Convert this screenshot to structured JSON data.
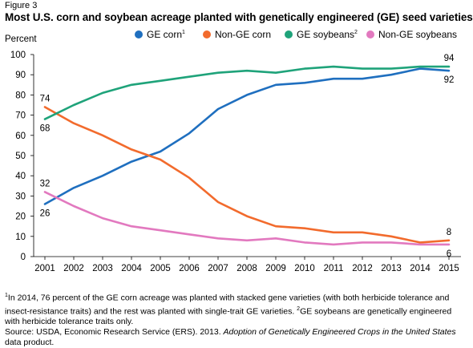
{
  "figure_label": "Figure 3",
  "title": "Most U.S. corn and soybean acreage planted with genetically engineered (GE) seed varieties",
  "notes": {
    "footnote_sup1": "1",
    "footnote_text1": "In 2014, 76 percent of the GE corn acreage was planted with stacked gene varieties (with both herbicide tolerance and insect-resistance traits) and the rest was planted with single-trait GE varieties. ",
    "footnote_sup2": "2",
    "footnote_text2": "GE soybeans are genetically engineered with herbicide tolerance traits only.",
    "source_prefix": "Source: USDA, Economic Research Service (ERS). 2013. ",
    "source_title": "Adoption of Genetically Engineered Crops in the United States",
    "source_suffix": " data product."
  },
  "chart_data": {
    "type": "line",
    "ylabel": "Percent",
    "ylim": [
      0,
      100
    ],
    "yticks": [
      0,
      10,
      20,
      30,
      40,
      50,
      60,
      70,
      80,
      90,
      100
    ],
    "x": [
      "2001",
      "2002",
      "2003",
      "2004",
      "2005",
      "2006",
      "2007",
      "2008",
      "2009",
      "2010",
      "2011",
      "2012",
      "2013",
      "2014",
      "2015"
    ],
    "legend_position": "top",
    "series": [
      {
        "name": "GE corn",
        "sup": "1",
        "color": "#1f6fbf",
        "values": [
          26,
          34,
          40,
          47,
          52,
          61,
          73,
          80,
          85,
          86,
          88,
          88,
          90,
          93,
          92
        ]
      },
      {
        "name": "Non-GE corn",
        "sup": "",
        "color": "#f26b2d",
        "values": [
          74,
          66,
          60,
          53,
          48,
          39,
          27,
          20,
          15,
          14,
          12,
          12,
          10,
          7,
          8
        ]
      },
      {
        "name": "GE soybeans",
        "sup": "2",
        "color": "#1fa37a",
        "values": [
          68,
          75,
          81,
          85,
          87,
          89,
          91,
          92,
          91,
          93,
          94,
          93,
          93,
          94,
          94
        ]
      },
      {
        "name": "Non-GE soybeans",
        "sup": "",
        "color": "#e279bf",
        "values": [
          32,
          25,
          19,
          15,
          13,
          11,
          9,
          8,
          9,
          7,
          6,
          7,
          7,
          6,
          6
        ]
      }
    ],
    "annotations": [
      {
        "text": "74",
        "x": "2001",
        "y": 74,
        "pos": "above"
      },
      {
        "text": "68",
        "x": "2001",
        "y": 68,
        "pos": "below"
      },
      {
        "text": "32",
        "x": "2001",
        "y": 32,
        "pos": "above"
      },
      {
        "text": "26",
        "x": "2001",
        "y": 26,
        "pos": "below"
      },
      {
        "text": "94",
        "x": "2015",
        "y": 94,
        "pos": "above"
      },
      {
        "text": "92",
        "x": "2015",
        "y": 92,
        "pos": "below"
      },
      {
        "text": "8",
        "x": "2015",
        "y": 8,
        "pos": "above"
      },
      {
        "text": "6",
        "x": "2015",
        "y": 6,
        "pos": "below"
      }
    ],
    "grid": false
  }
}
